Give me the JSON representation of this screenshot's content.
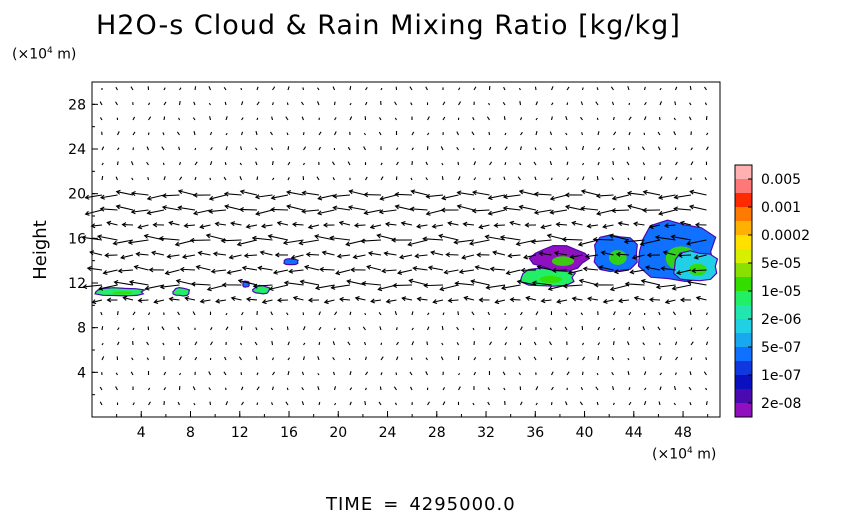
{
  "chart_data": {
    "type": "heatmap",
    "title": "H2O-s Cloud & Rain Mixing Ratio [kg/kg]",
    "ylabel": "Height",
    "xlabel": "",
    "x_unit_prefix": "(×10",
    "x_unit_exp": "4",
    "x_unit_suffix": " m)",
    "y_unit_prefix": "(×10",
    "y_unit_exp": "4",
    "y_unit_suffix": " m)",
    "xlim": [
      0,
      51
    ],
    "ylim": [
      0,
      30
    ],
    "x_ticks": [
      "4",
      "8",
      "12",
      "16",
      "20",
      "24",
      "28",
      "32",
      "36",
      "40",
      "44",
      "48"
    ],
    "y_ticks": [
      "4",
      "8",
      "12",
      "16",
      "20",
      "24",
      "28"
    ],
    "colorbar": {
      "labels": [
        "0.005",
        "0.001",
        "0.0002",
        "5e-05",
        "1e-05",
        "2e-06",
        "5e-07",
        "1e-07",
        "2e-08"
      ],
      "colors": [
        "#ffb0b0",
        "#ff7878",
        "#ff2a00",
        "#ff7a00",
        "#ffb000",
        "#ffe000",
        "#d8f000",
        "#8ae000",
        "#33dd00",
        "#22ee66",
        "#22e6b0",
        "#22d0e6",
        "#18a8f0",
        "#1070ff",
        "#1038e0",
        "#0a10c0",
        "#4a0ab0",
        "#9010c0"
      ]
    },
    "field_regions": [
      {
        "x0": 34.5,
        "x1": 39.5,
        "y0": 11.6,
        "y1": 13.4,
        "level": "1e-05"
      },
      {
        "x0": 35.5,
        "x1": 40.5,
        "y0": 13.0,
        "y1": 15.4,
        "level": "2e-08"
      },
      {
        "x0": 40.5,
        "x1": 44.5,
        "y0": 12.8,
        "y1": 16.5,
        "level": "5e-07"
      },
      {
        "x0": 44.0,
        "x1": 51.0,
        "y0": 11.8,
        "y1": 17.8,
        "level": "5e-07"
      },
      {
        "x0": 47.0,
        "x1": 51.0,
        "y0": 12.0,
        "y1": 15.0,
        "level": "2e-06"
      },
      {
        "x0": 0.0,
        "x1": 4.5,
        "y0": 10.8,
        "y1": 11.6,
        "level": "1e-05"
      },
      {
        "x0": 6.5,
        "x1": 8.0,
        "y0": 10.8,
        "y1": 11.6,
        "level": "1e-05"
      },
      {
        "x0": 13.0,
        "x1": 14.5,
        "y0": 11.0,
        "y1": 11.8,
        "level": "1e-05"
      },
      {
        "x0": 15.5,
        "x1": 16.8,
        "y0": 13.6,
        "y1": 14.2,
        "level": "5e-07"
      },
      {
        "x0": 12.2,
        "x1": 12.8,
        "y0": 11.6,
        "y1": 12.2,
        "level": "5e-07"
      }
    ]
  },
  "footer": {
    "label": "TIME",
    "equals": "=",
    "value": "4295000.0"
  }
}
